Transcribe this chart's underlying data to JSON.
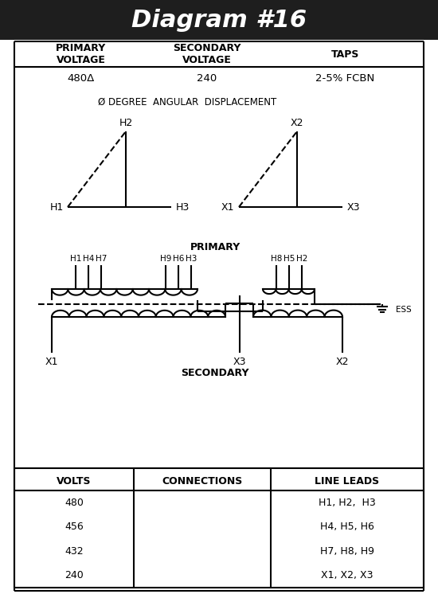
{
  "title": "Diagram #16",
  "title_bg": "#1e1e1e",
  "title_color": "#ffffff",
  "primary_voltage": "480Δ",
  "secondary_voltage": "240",
  "taps": "2-5% FCBN",
  "angular_displacement": "Ø DEGREE  ANGULAR  DISPLACEMENT",
  "table_headers": [
    "VOLTS",
    "CONNECTIONS",
    "LINE LEADS"
  ],
  "table_rows": [
    [
      "480",
      "",
      "H1, H2,  H3"
    ],
    [
      "456",
      "",
      "H4, H5, H6"
    ],
    [
      "432",
      "",
      "H7, H8, H9"
    ],
    [
      "240",
      "",
      "X1, X2, X3"
    ]
  ],
  "secondary_label": "SECONDARY",
  "primary_label": "PRIMARY",
  "fig_width": 5.5,
  "fig_height": 7.46,
  "dpi": 100
}
